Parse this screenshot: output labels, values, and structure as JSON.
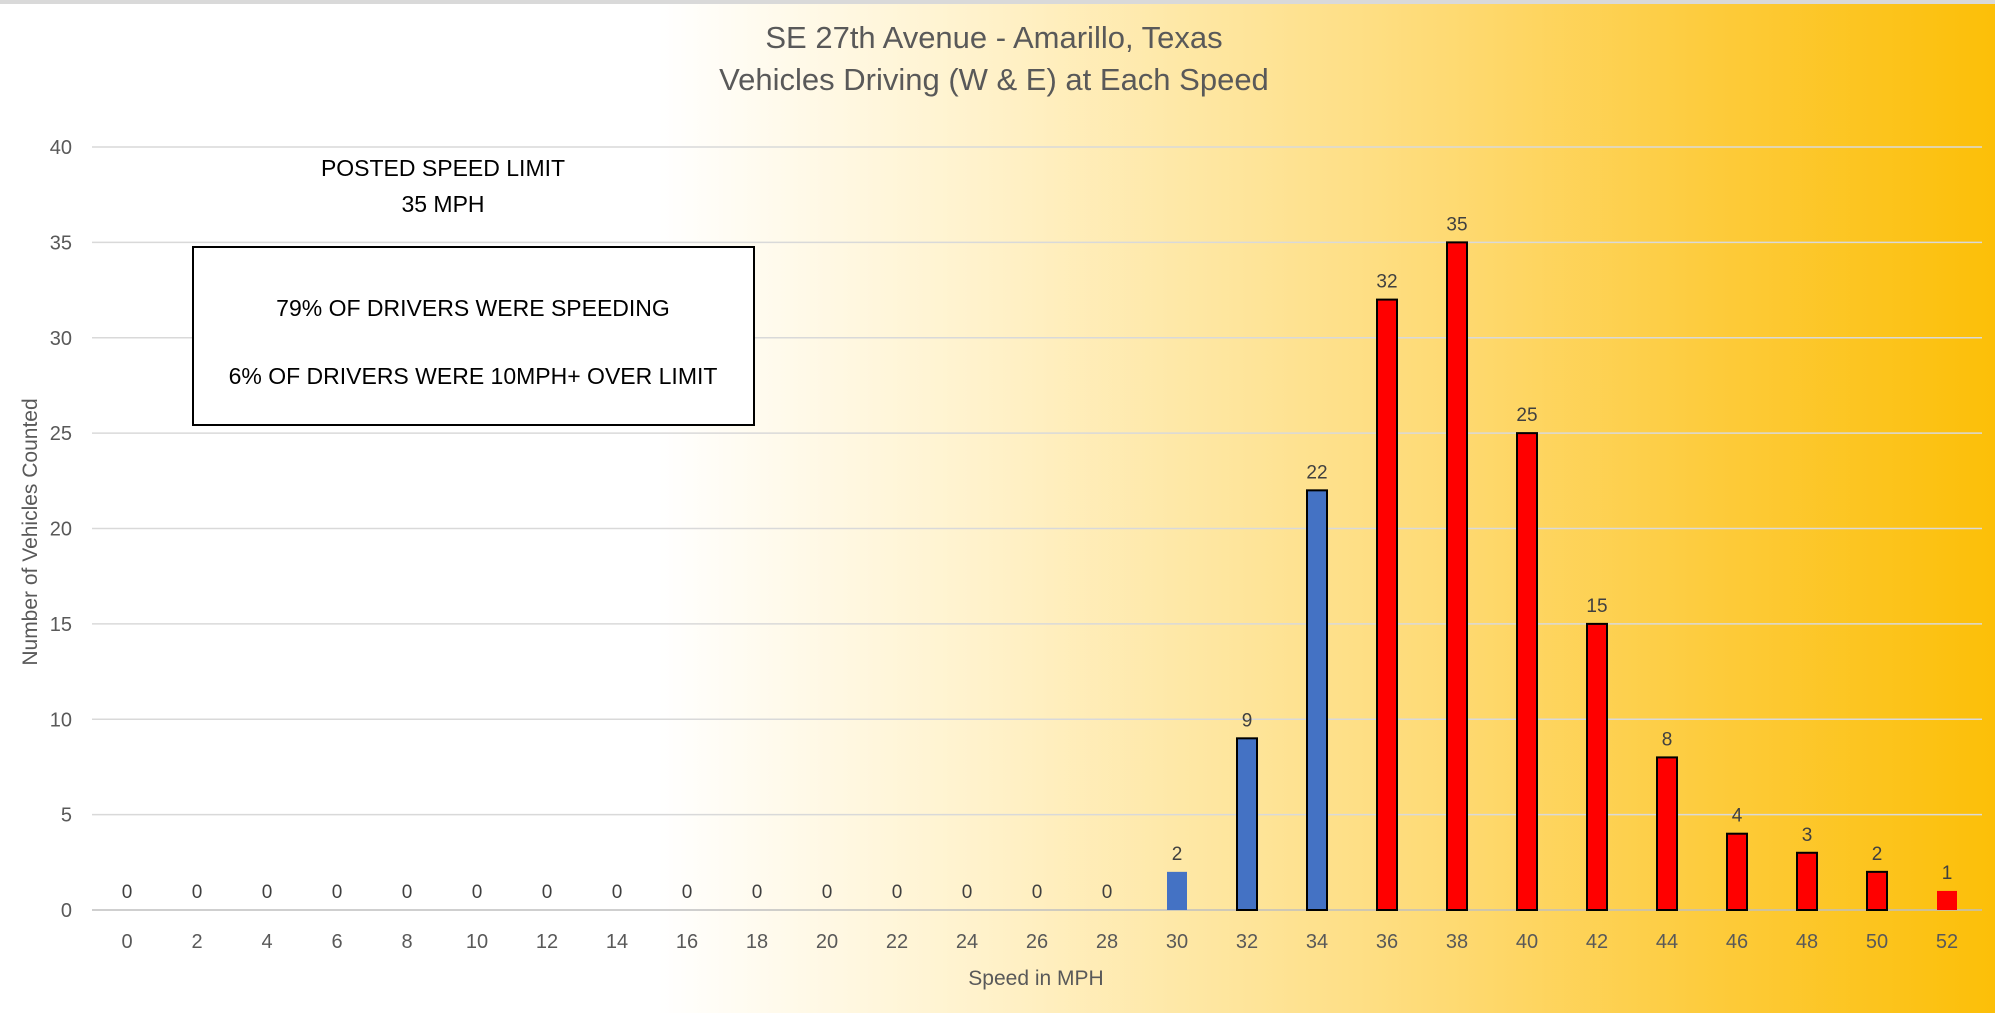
{
  "chart_data": {
    "type": "bar",
    "title": [
      "SE 27th Avenue - Amarillo, Texas",
      "Vehicles Driving (W & E) at Each Speed"
    ],
    "xlabel": "Speed in MPH",
    "ylabel": "Number of Vehicles Counted",
    "categories": [
      "0",
      "2",
      "4",
      "6",
      "8",
      "10",
      "12",
      "14",
      "16",
      "18",
      "20",
      "22",
      "24",
      "26",
      "28",
      "30",
      "32",
      "34",
      "36",
      "38",
      "40",
      "42",
      "44",
      "46",
      "48",
      "50",
      "52"
    ],
    "values": [
      0,
      0,
      0,
      0,
      0,
      0,
      0,
      0,
      0,
      0,
      0,
      0,
      0,
      0,
      0,
      2,
      9,
      22,
      32,
      35,
      25,
      15,
      8,
      4,
      3,
      2,
      1
    ],
    "bar_colors": [
      "#4472c4",
      "#4472c4",
      "#4472c4",
      "#4472c4",
      "#4472c4",
      "#4472c4",
      "#4472c4",
      "#4472c4",
      "#4472c4",
      "#4472c4",
      "#4472c4",
      "#4472c4",
      "#4472c4",
      "#4472c4",
      "#4472c4",
      "#4472c4",
      "#4472c4",
      "#4472c4",
      "#ff0000",
      "#ff0000",
      "#ff0000",
      "#ff0000",
      "#ff0000",
      "#ff0000",
      "#ff0000",
      "#ff0000",
      "#ff0000"
    ],
    "outlined_bars": [
      false,
      false,
      false,
      false,
      false,
      false,
      false,
      false,
      false,
      false,
      false,
      false,
      false,
      false,
      false,
      false,
      true,
      true,
      true,
      true,
      true,
      true,
      true,
      true,
      true,
      true,
      false
    ],
    "ylim": [
      0,
      40
    ],
    "yticks": [
      0,
      5,
      10,
      15,
      20,
      25,
      30,
      35,
      40
    ],
    "grid": true,
    "legend": "none",
    "annotations": {
      "speed_limit": [
        "POSTED SPEED LIMIT",
        "35 MPH"
      ],
      "box": [
        "79% OF DRIVERS WERE SPEEDING",
        "6% OF DRIVERS WERE 10MPH+ OVER LIMIT"
      ]
    }
  }
}
